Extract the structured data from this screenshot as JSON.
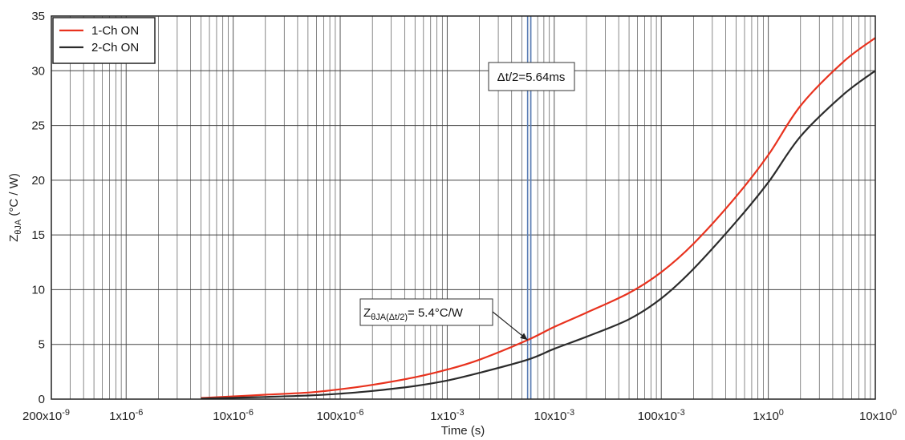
{
  "chart_data": {
    "type": "line",
    "xscale": "log",
    "xlabel": "Time (s)",
    "ylabel_main": "Z",
    "ylabel_sub": "θJA",
    "ylabel_rest": " (°C / W)",
    "xlim": [
      2e-07,
      10
    ],
    "ylim": [
      0,
      35
    ],
    "grid": true,
    "legend_position": "top-left",
    "xticks": [
      {
        "value": 2e-07,
        "label": "200x10",
        "exp": "-9"
      },
      {
        "value": 1e-06,
        "label": "1x10",
        "exp": "-6"
      },
      {
        "value": 1e-05,
        "label": "10x10",
        "exp": "-6"
      },
      {
        "value": 0.0001,
        "label": "100x10",
        "exp": "-6"
      },
      {
        "value": 0.001,
        "label": "1x10",
        "exp": "-3"
      },
      {
        "value": 0.01,
        "label": "10x10",
        "exp": "-3"
      },
      {
        "value": 0.1,
        "label": "100x10",
        "exp": "-3"
      },
      {
        "value": 1,
        "label": "1x10",
        "exp": "0"
      },
      {
        "value": 10,
        "label": "10x10",
        "exp": "0"
      }
    ],
    "yticks": [
      0,
      5,
      10,
      15,
      20,
      25,
      30,
      35
    ],
    "series": [
      {
        "name": "1-Ch ON",
        "color": "#e8321e",
        "x": [
          5e-06,
          1e-05,
          2e-05,
          5e-05,
          0.0001,
          0.0002,
          0.0005,
          0.001,
          0.002,
          0.00564,
          0.01,
          0.02,
          0.05,
          0.1,
          0.2,
          0.5,
          1,
          2,
          5,
          10
        ],
        "y": [
          0.1,
          0.25,
          0.4,
          0.6,
          0.9,
          1.3,
          2.0,
          2.7,
          3.6,
          5.4,
          6.6,
          7.9,
          9.7,
          11.6,
          14.2,
          18.5,
          22.3,
          26.8,
          30.8,
          33.0
        ]
      },
      {
        "name": "2-Ch ON",
        "color": "#2b2b2b",
        "x": [
          5e-06,
          1e-05,
          2e-05,
          5e-05,
          0.0001,
          0.0002,
          0.0005,
          0.001,
          0.002,
          0.00564,
          0.01,
          0.02,
          0.05,
          0.1,
          0.2,
          0.5,
          1,
          2,
          5,
          10
        ],
        "y": [
          0.05,
          0.12,
          0.2,
          0.33,
          0.5,
          0.75,
          1.2,
          1.7,
          2.4,
          3.6,
          4.6,
          5.7,
          7.3,
          9.2,
          11.9,
          16.2,
          19.8,
          24.0,
          27.8,
          30.0
        ]
      }
    ],
    "vertical_marker": {
      "x": 0.00564,
      "color": "#5a7db5"
    },
    "annotations": [
      {
        "id": "dt",
        "text": "Δt/2=5.64ms"
      },
      {
        "id": "z",
        "main": "Z",
        "sub": "θJA(Δt/2)",
        "rest": "= 5.4°C/W",
        "point": {
          "x": 0.00564,
          "y": 5.4
        }
      }
    ]
  }
}
